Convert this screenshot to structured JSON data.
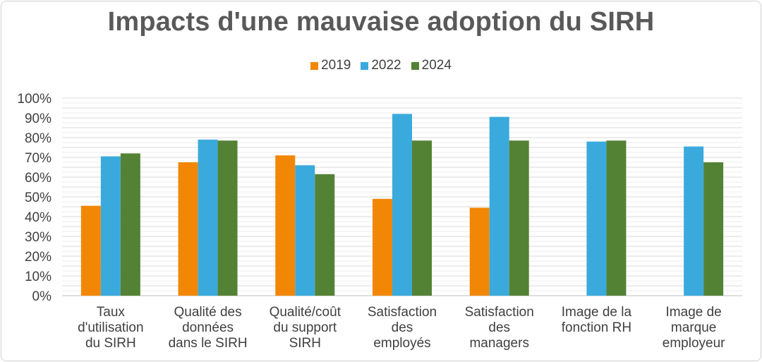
{
  "chart_data": {
    "type": "bar",
    "title": "Impacts d'une mauvaise adoption du SIRH",
    "categories": [
      [
        "Taux",
        "d'utilisation",
        "du SIRH"
      ],
      [
        "Qualité des",
        "données",
        "dans le SIRH"
      ],
      [
        "Qualité/coût",
        "du support",
        "SIRH"
      ],
      [
        "Satisfaction",
        "des",
        "employés"
      ],
      [
        "Satisfaction",
        "des",
        "managers"
      ],
      [
        "Image de la",
        "fonction RH"
      ],
      [
        "Image de",
        "marque",
        "employeur"
      ]
    ],
    "series": [
      {
        "name": "2019",
        "color": "#F28705",
        "values": [
          45.5,
          67.5,
          71,
          49,
          44.5,
          null,
          null
        ]
      },
      {
        "name": "2022",
        "color": "#3AAADD",
        "values": [
          70.5,
          79,
          66,
          92,
          90.5,
          78,
          75.5
        ]
      },
      {
        "name": "2024",
        "color": "#548235",
        "values": [
          72,
          78.5,
          61.5,
          78.5,
          78.5,
          78.5,
          67.5
        ]
      }
    ],
    "ylim": [
      0,
      100
    ],
    "yticks": [
      "0%",
      "10%",
      "20%",
      "30%",
      "40%",
      "50%",
      "60%",
      "70%",
      "80%",
      "90%",
      "100%"
    ],
    "legend_position": "top",
    "grid": true
  }
}
